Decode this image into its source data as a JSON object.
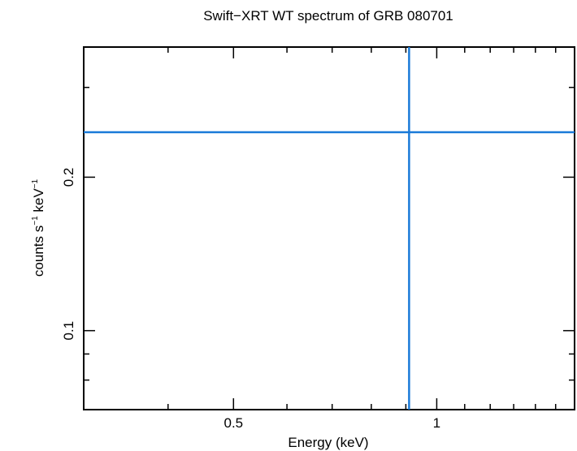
{
  "chart_data": {
    "type": "scatter",
    "title": "Swift−XRT WT spectrum of GRB 080701",
    "xlabel": "Energy (keV)",
    "ylabel_main": "counts s",
    "ylabel_sup1": "−1",
    "ylabel_mid": " keV",
    "ylabel_sup2": "−1",
    "xscale": "log",
    "yscale": "log",
    "xlim": [
      0.3,
      1.6
    ],
    "ylim": [
      0.07,
      0.36
    ],
    "grid": false,
    "x_ticks": [
      {
        "value": 0.5,
        "label": "0.5"
      },
      {
        "value": 1,
        "label": "1"
      }
    ],
    "y_ticks": [
      {
        "value": 0.1,
        "label": "0.1"
      },
      {
        "value": 0.2,
        "label": "0.2"
      }
    ],
    "series": [
      {
        "color": "#1a7ad8",
        "points": [
          {
            "x": 0.91,
            "xerr": [
              0.3,
              1.6
            ],
            "y": 0.245,
            "yerr": [
              0.07,
              0.36
            ]
          }
        ]
      }
    ]
  }
}
